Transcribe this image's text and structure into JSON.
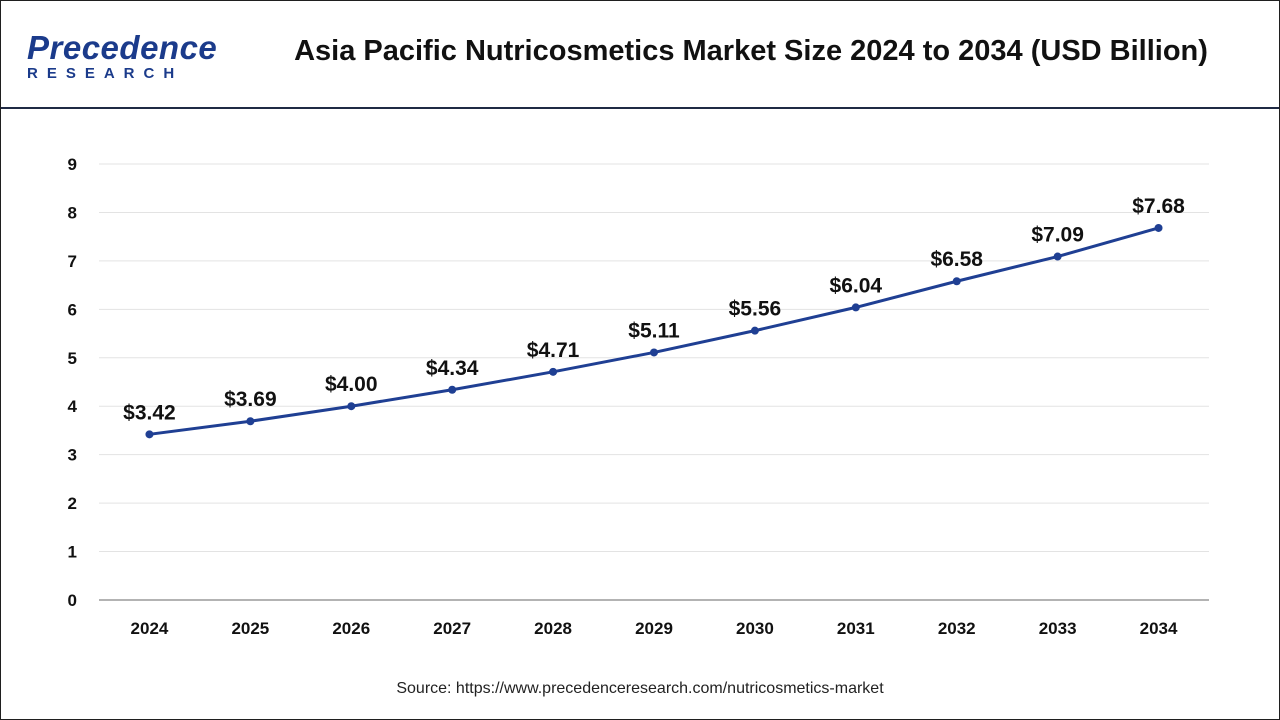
{
  "header": {
    "logo_text": "Precedence",
    "logo_subtext": "RESEARCH",
    "title": "Asia Pacific Nutricosmetics Market Size 2024 to 2034 (USD Billion)"
  },
  "chart_data": {
    "type": "line",
    "title": "Asia Pacific Nutricosmetics Market Size 2024 to 2034 (USD Billion)",
    "categories": [
      "2024",
      "2025",
      "2026",
      "2027",
      "2028",
      "2029",
      "2030",
      "2031",
      "2032",
      "2033",
      "2034"
    ],
    "values": [
      3.42,
      3.69,
      4.0,
      4.34,
      4.71,
      5.11,
      5.56,
      6.04,
      6.58,
      7.09,
      7.68
    ],
    "data_labels": [
      "$3.42",
      "$3.69",
      "$4.00",
      "$4.34",
      "$4.71",
      "$5.11",
      "$5.56",
      "$6.04",
      "$6.58",
      "$7.09",
      "$7.68"
    ],
    "y_ticks": [
      "0",
      "1",
      "2",
      "3",
      "4",
      "5",
      "6",
      "7",
      "8",
      "9"
    ],
    "ylim": [
      0,
      9
    ],
    "xlabel": "",
    "ylabel": "",
    "grid": true,
    "legend": "none",
    "line_color": "#1f3f93"
  },
  "footer": {
    "source": "Source: https://www.precedenceresearch.com/nutricosmetics-market"
  }
}
